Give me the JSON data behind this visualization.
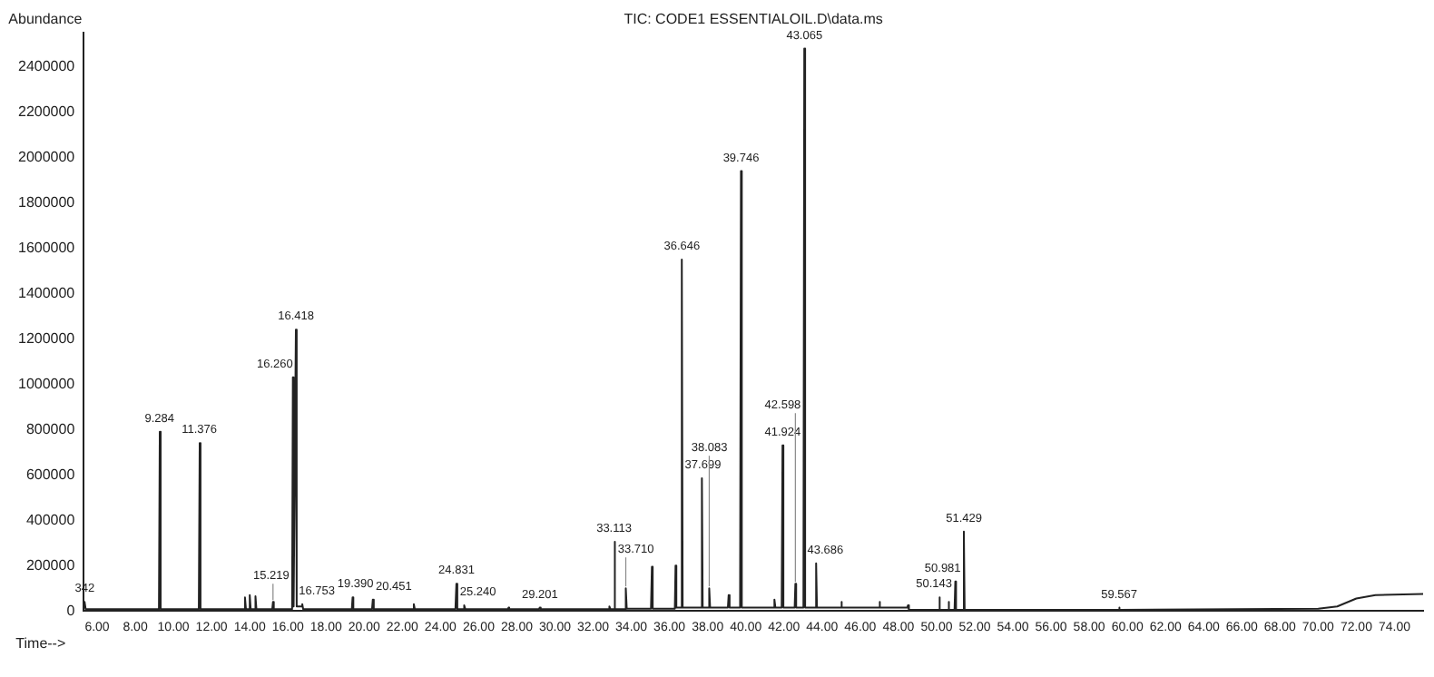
{
  "chart_data": {
    "type": "line",
    "title": "TIC: CODE1 ESSENTIALOIL.D\\data.ms",
    "xlabel": "Time-->",
    "ylabel": "Abundance",
    "xlim": [
      5.3,
      75.5
    ],
    "ylim": [
      0,
      2550000
    ],
    "xticks": [
      {
        "value": 6,
        "label": "6.00"
      },
      {
        "value": 8,
        "label": "8.00"
      },
      {
        "value": 10,
        "label": "10.00"
      },
      {
        "value": 12,
        "label": "12.00"
      },
      {
        "value": 14,
        "label": "14.00"
      },
      {
        "value": 16,
        "label": "16.00"
      },
      {
        "value": 18,
        "label": "18.00"
      },
      {
        "value": 20,
        "label": "20.00"
      },
      {
        "value": 22,
        "label": "22.00"
      },
      {
        "value": 24,
        "label": "24.00"
      },
      {
        "value": 26,
        "label": "26.00"
      },
      {
        "value": 28,
        "label": "28.00"
      },
      {
        "value": 30,
        "label": "30.00"
      },
      {
        "value": 32,
        "label": "32.00"
      },
      {
        "value": 34,
        "label": "34.00"
      },
      {
        "value": 36,
        "label": "36.00"
      },
      {
        "value": 38,
        "label": "38.00"
      },
      {
        "value": 40,
        "label": "40.00"
      },
      {
        "value": 42,
        "label": "42.00"
      },
      {
        "value": 44,
        "label": "44.00"
      },
      {
        "value": 46,
        "label": "46.00"
      },
      {
        "value": 48,
        "label": "48.00"
      },
      {
        "value": 50,
        "label": "50.00"
      },
      {
        "value": 52,
        "label": "52.00"
      },
      {
        "value": 54,
        "label": "54.00"
      },
      {
        "value": 56,
        "label": "56.00"
      },
      {
        "value": 58,
        "label": "58.00"
      },
      {
        "value": 60,
        "label": "60.00"
      },
      {
        "value": 62,
        "label": "62.00"
      },
      {
        "value": 64,
        "label": "64.00"
      },
      {
        "value": 66,
        "label": "66.00"
      },
      {
        "value": 68,
        "label": "68.00"
      },
      {
        "value": 70,
        "label": "70.00"
      },
      {
        "value": 72,
        "label": "72.00"
      },
      {
        "value": 74,
        "label": "74.00"
      }
    ],
    "yticks": [
      0,
      200000,
      400000,
      600000,
      800000,
      1000000,
      1200000,
      1400000,
      1600000,
      1800000,
      2000000,
      2200000,
      2400000
    ],
    "grid": false,
    "legend": false,
    "marker": "none",
    "line_style": "solid",
    "series": [
      {
        "color": "#222222",
        "x": [
          5.3,
          5.342,
          5.4,
          9.24,
          9.284,
          9.33,
          11.33,
          11.376,
          11.42,
          13.7,
          13.75,
          13.8,
          13.96,
          14.0,
          14.05,
          14.26,
          14.3,
          14.35,
          15.18,
          15.219,
          15.26,
          16.22,
          16.26,
          16.3,
          16.418,
          16.46,
          16.71,
          16.753,
          16.8,
          19.35,
          19.39,
          19.43,
          20.41,
          20.451,
          20.5,
          22.55,
          22.6,
          22.65,
          24.78,
          24.831,
          24.88,
          25.2,
          25.24,
          25.3,
          27.53,
          27.567,
          27.6,
          29.16,
          29.201,
          29.25,
          32.8,
          32.85,
          32.9,
          33.07,
          33.113,
          33.16,
          33.67,
          33.71,
          33.76,
          35.03,
          35.078,
          35.12,
          36.28,
          36.317,
          36.36,
          36.6,
          36.646,
          36.69,
          37.65,
          37.699,
          37.74,
          38.04,
          38.083,
          38.13,
          39.06,
          39.1,
          39.15,
          39.7,
          39.746,
          39.79,
          41.46,
          41.5,
          41.55,
          41.88,
          41.924,
          41.97,
          42.56,
          42.598,
          42.64,
          43.02,
          43.065,
          43.11,
          43.64,
          43.686,
          43.73,
          44.96,
          45,
          45.05,
          46.96,
          47,
          47.05,
          48.46,
          48.5,
          48.55,
          50.1,
          50.143,
          50.18,
          50.59,
          50.628,
          50.66,
          50.94,
          50.981,
          51.02,
          51.39,
          51.429,
          51.47,
          55,
          59.53,
          59.567,
          59.6,
          70,
          71,
          72,
          73,
          75.5
        ],
        "values": [
          15000,
          40000,
          8000,
          8000,
          790000,
          8000,
          8000,
          740000,
          8000,
          8000,
          60000,
          8000,
          8000,
          70000,
          8000,
          8000,
          65000,
          8000,
          8000,
          40000,
          8000,
          8000,
          1030000,
          20000,
          1240000,
          20000,
          20000,
          30000,
          8000,
          8000,
          60000,
          8000,
          8000,
          50000,
          8000,
          8000,
          30000,
          8000,
          8000,
          120000,
          8000,
          8000,
          25000,
          8000,
          8000,
          15000,
          8000,
          8000,
          15000,
          8000,
          8000,
          20000,
          8000,
          8000,
          305000,
          8000,
          8000,
          100000,
          10000,
          10000,
          195000,
          10000,
          10000,
          200000,
          15000,
          15000,
          1550000,
          15000,
          15000,
          585000,
          15000,
          15000,
          100000,
          15000,
          15000,
          70000,
          15000,
          15000,
          1940000,
          15000,
          15000,
          50000,
          15000,
          15000,
          730000,
          15000,
          15000,
          120000,
          15000,
          15000,
          2480000,
          15000,
          15000,
          210000,
          15000,
          15000,
          40000,
          15000,
          15000,
          40000,
          15000,
          15000,
          25000,
          5000,
          5000,
          60000,
          5000,
          5000,
          40000,
          5000,
          5000,
          130000,
          5000,
          5000,
          350000,
          5000,
          5000,
          5000,
          15000,
          5000,
          10000,
          20000,
          55000,
          70000,
          75000
        ]
      }
    ],
    "annotations": [
      {
        "text": "342",
        "x": 5.342,
        "y": 40000
      },
      {
        "text": "9.284",
        "x": 9.284,
        "y": 790000
      },
      {
        "text": "11.376",
        "x": 11.376,
        "y": 740000
      },
      {
        "text": "15.219",
        "x": 15.219,
        "y": 40000
      },
      {
        "text": "16.260",
        "x": 16.26,
        "y": 1030000
      },
      {
        "text": "16.418",
        "x": 16.418,
        "y": 1240000
      },
      {
        "text": "16.753",
        "x": 16.753,
        "y": 30000
      },
      {
        "text": "19.390",
        "x": 19.39,
        "y": 60000
      },
      {
        "text": "20.451",
        "x": 20.451,
        "y": 50000
      },
      {
        "text": "24.831",
        "x": 24.831,
        "y": 120000
      },
      {
        "text": "25.240",
        "x": 25.24,
        "y": 25000
      },
      {
        "text": "29.201",
        "x": 29.201,
        "y": 15000
      },
      {
        "text": "33.113",
        "x": 33.113,
        "y": 305000
      },
      {
        "text": "33.710",
        "x": 33.71,
        "y": 100000
      },
      {
        "text": "36.646",
        "x": 36.646,
        "y": 1550000
      },
      {
        "text": "37.699",
        "x": 37.699,
        "y": 585000
      },
      {
        "text": "38.083",
        "x": 38.083,
        "y": 100000
      },
      {
        "text": "39.746",
        "x": 39.746,
        "y": 1940000
      },
      {
        "text": "41.924",
        "x": 41.924,
        "y": 730000
      },
      {
        "text": "42.598",
        "x": 42.598,
        "y": 120000
      },
      {
        "text": "43.065",
        "x": 43.065,
        "y": 2480000
      },
      {
        "text": "43.686",
        "x": 43.686,
        "y": 210000
      },
      {
        "text": "50.143",
        "x": 50.143,
        "y": 60000
      },
      {
        "text": "50.981",
        "x": 50.981,
        "y": 130000
      },
      {
        "text": "51.429",
        "x": 51.429,
        "y": 350000
      },
      {
        "text": "59.567",
        "x": 59.567,
        "y": 15000
      }
    ]
  }
}
